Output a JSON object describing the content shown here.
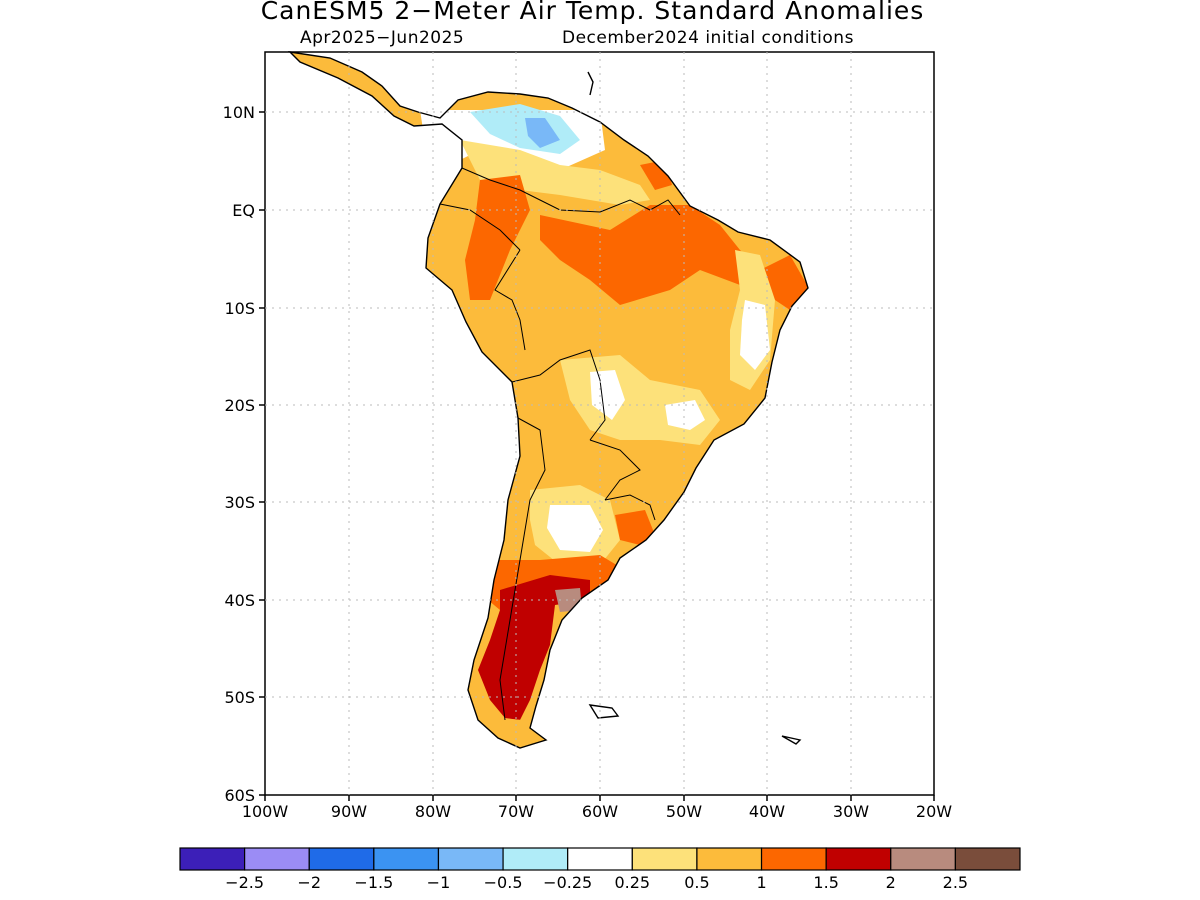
{
  "title": "CanESM5 2−Meter Air Temp. Standard Anomalies",
  "subtitle_left": "Apr2025−Jun2025",
  "subtitle_right": "December2024 initial conditions",
  "lat_ticks": [
    "10N",
    "EQ",
    "10S",
    "20S",
    "30S",
    "40S",
    "50S",
    "60S"
  ],
  "lon_ticks": [
    "100W",
    "90W",
    "80W",
    "70W",
    "60W",
    "50W",
    "40W",
    "30W",
    "20W"
  ],
  "colorbar": {
    "colors": [
      "#3c1fb8",
      "#9b8cf5",
      "#1f6be8",
      "#3b93f2",
      "#79b8f7",
      "#b0ecf8",
      "#ffffff",
      "#fde17a",
      "#fcbb3b",
      "#fc6700",
      "#c00000",
      "#b88b7e",
      "#7a4d3b"
    ],
    "labels": [
      "−2.5",
      "−2",
      "−1.5",
      "−1",
      "−0.5",
      "−0.25",
      "0.25",
      "0.5",
      "1",
      "1.5",
      "2",
      "2.5"
    ]
  },
  "legend_colors": {
    "neg_light": "#b0ecf8",
    "neg_mid": "#79b8f7",
    "pos_light": "#fde17a",
    "pos_mid": "#fcbb3b",
    "pos_high": "#fc6700",
    "pos_very_high": "#c00000",
    "pos_extreme": "#b88b7e"
  }
}
